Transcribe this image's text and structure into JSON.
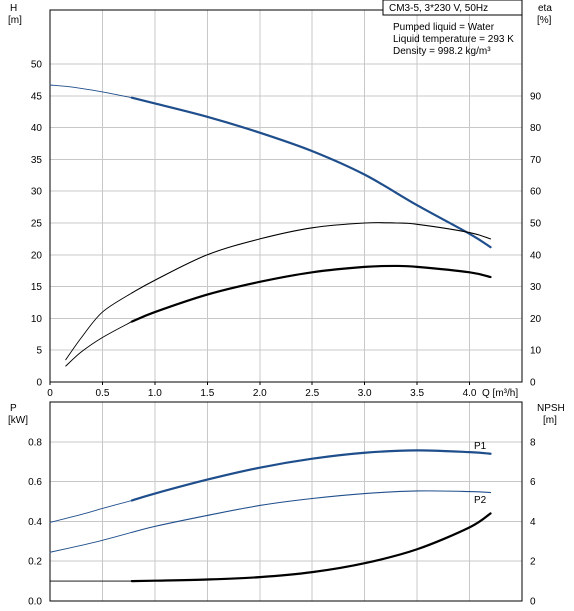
{
  "chart_data": [
    {
      "type": "line",
      "title": "CM3-5, 3*230 V, 50Hz",
      "info": {
        "pumped_liquid": "Pumped liquid = Water",
        "liquid_temperature": "Liquid temperature = 293 K",
        "density": "Density = 998.2 kg/m³"
      },
      "xlabel": "Q [m³/h]",
      "ylabel_left": {
        "symbol": "H",
        "unit": "[m]"
      },
      "ylabel_right": {
        "symbol": "eta",
        "unit": "[%]"
      },
      "xlim": [
        0,
        4.5
      ],
      "ylim_left": [
        0,
        50
      ],
      "ylim_right": [
        0,
        100
      ],
      "x_ticks": [
        "0",
        "0.5",
        "1.0",
        "1.5",
        "2.0",
        "2.5",
        "3.0",
        "3.5",
        "4.0"
      ],
      "y_ticks_left": [
        "0",
        "5",
        "10",
        "15",
        "20",
        "25",
        "30",
        "35",
        "40",
        "45",
        "50"
      ],
      "y_ticks_right": [
        "0",
        "10",
        "20",
        "30",
        "40",
        "50",
        "60",
        "70",
        "80",
        "90"
      ],
      "grid": true,
      "series": [
        {
          "axis": "left",
          "color": "#1f4e8c",
          "x": [
            0.0,
            0.2,
            0.4,
            0.6,
            0.78
          ],
          "y": [
            46.7,
            46.4,
            45.9,
            45.3,
            44.7
          ]
        },
        {
          "axis": "left",
          "color": "#1f4e8c",
          "x": [
            0.78,
            1.0,
            1.5,
            2.0,
            2.5,
            3.0,
            3.5,
            4.0,
            4.2
          ],
          "y": [
            44.7,
            43.8,
            41.7,
            39.2,
            36.3,
            32.6,
            27.8,
            23.3,
            21.2
          ]
        },
        {
          "axis": "right",
          "color": "#000000",
          "x": [
            0.15,
            0.3,
            0.5,
            0.78
          ],
          "y": [
            7,
            14,
            22,
            28
          ]
        },
        {
          "axis": "right",
          "color": "#000000",
          "x": [
            0.78,
            1.0,
            1.5,
            2.0,
            2.5,
            3.0,
            3.3,
            3.5,
            4.0,
            4.2
          ],
          "y": [
            28,
            32,
            40,
            45,
            48.5,
            50,
            50,
            49.6,
            47,
            45
          ]
        },
        {
          "axis": "right",
          "color": "#000000",
          "x": [
            0.15,
            0.3,
            0.5,
            0.78
          ],
          "y": [
            5,
            9.5,
            14,
            19
          ]
        },
        {
          "axis": "right",
          "color": "#000000",
          "x": [
            0.78,
            1.0,
            1.5,
            2.0,
            2.5,
            3.0,
            3.3,
            3.5,
            4.0,
            4.2
          ],
          "y": [
            19,
            22,
            27.5,
            31.5,
            34.5,
            36.2,
            36.5,
            36.2,
            34.5,
            33
          ]
        }
      ]
    },
    {
      "type": "line",
      "xlabel": "",
      "ylabel_left": {
        "symbol": "P",
        "unit": "[kW]"
      },
      "ylabel_right": {
        "symbol": "NPSH",
        "unit": "[m]"
      },
      "xlim": [
        0,
        4.5
      ],
      "ylim_left": [
        0,
        1.0
      ],
      "ylim_right": [
        0,
        10
      ],
      "y_ticks_left": [
        "0.0",
        "0.2",
        "0.4",
        "0.6",
        "0.8"
      ],
      "y_ticks_right": [
        "0",
        "2",
        "4",
        "6",
        "8"
      ],
      "grid": true,
      "series": [
        {
          "name": "P1",
          "axis": "left",
          "color": "#1f4e8c",
          "x": [
            0.0,
            0.3,
            0.5,
            0.78
          ],
          "y": [
            0.395,
            0.435,
            0.465,
            0.505
          ]
        },
        {
          "name": "P1",
          "axis": "left",
          "color": "#1f4e8c",
          "x": [
            0.78,
            1.0,
            1.5,
            2.0,
            2.5,
            3.0,
            3.5,
            4.0,
            4.2
          ],
          "y": [
            0.505,
            0.54,
            0.61,
            0.67,
            0.715,
            0.745,
            0.757,
            0.748,
            0.74
          ]
        },
        {
          "name": "P2",
          "axis": "left",
          "color": "#1f4e8c",
          "x": [
            0.0,
            0.3,
            0.5,
            0.78
          ],
          "y": [
            0.245,
            0.28,
            0.305,
            0.345
          ]
        },
        {
          "name": "P2",
          "axis": "left",
          "color": "#1f4e8c",
          "x": [
            0.78,
            1.0,
            1.5,
            2.0,
            2.5,
            3.0,
            3.5,
            4.0,
            4.2
          ],
          "y": [
            0.345,
            0.375,
            0.43,
            0.48,
            0.515,
            0.54,
            0.553,
            0.55,
            0.545
          ]
        },
        {
          "axis": "right",
          "color": "#000000",
          "x": [
            0.0,
            0.78
          ],
          "y": [
            1.0,
            1.0
          ]
        },
        {
          "axis": "right",
          "color": "#000000",
          "x": [
            0.78,
            1.0,
            1.5,
            2.0,
            2.5,
            3.0,
            3.5,
            4.0,
            4.2
          ],
          "y": [
            1.0,
            1.02,
            1.08,
            1.2,
            1.45,
            1.9,
            2.6,
            3.7,
            4.4
          ]
        }
      ]
    }
  ]
}
